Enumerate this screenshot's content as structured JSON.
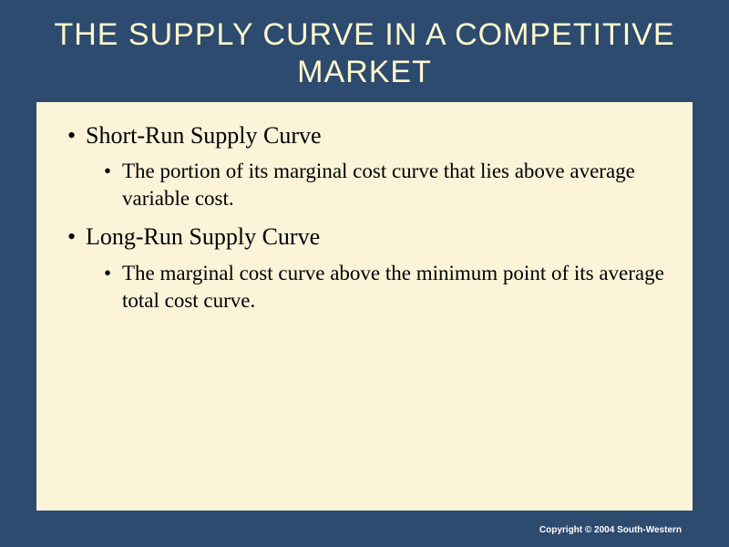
{
  "colors": {
    "slide_background": "#2d4a6f",
    "title_color": "#fff8cc",
    "content_background": "#fcf4d9",
    "content_text": "#000000",
    "copyright_bg": "#2d4a6f",
    "copyright_text": "#ffffff"
  },
  "typography": {
    "title_fontsize": 34,
    "bullet_l1_fontsize": 26,
    "bullet_l2_fontsize": 23,
    "copyright_fontsize": 10,
    "title_font": "Arial, sans-serif",
    "body_font": "Times New Roman, serif"
  },
  "title": "THE SUPPLY CURVE IN A COMPETITIVE MARKET",
  "bullets": [
    {
      "level": 1,
      "text": "Short-Run Supply Curve"
    },
    {
      "level": 2,
      "text": "The portion of its marginal cost curve that lies above average variable cost."
    },
    {
      "level": 1,
      "text": "Long-Run Supply Curve"
    },
    {
      "level": 2,
      "text": "The marginal cost curve above the minimum point of its average total cost curve."
    }
  ],
  "copyright": "Copyright © 2004  South-Western"
}
